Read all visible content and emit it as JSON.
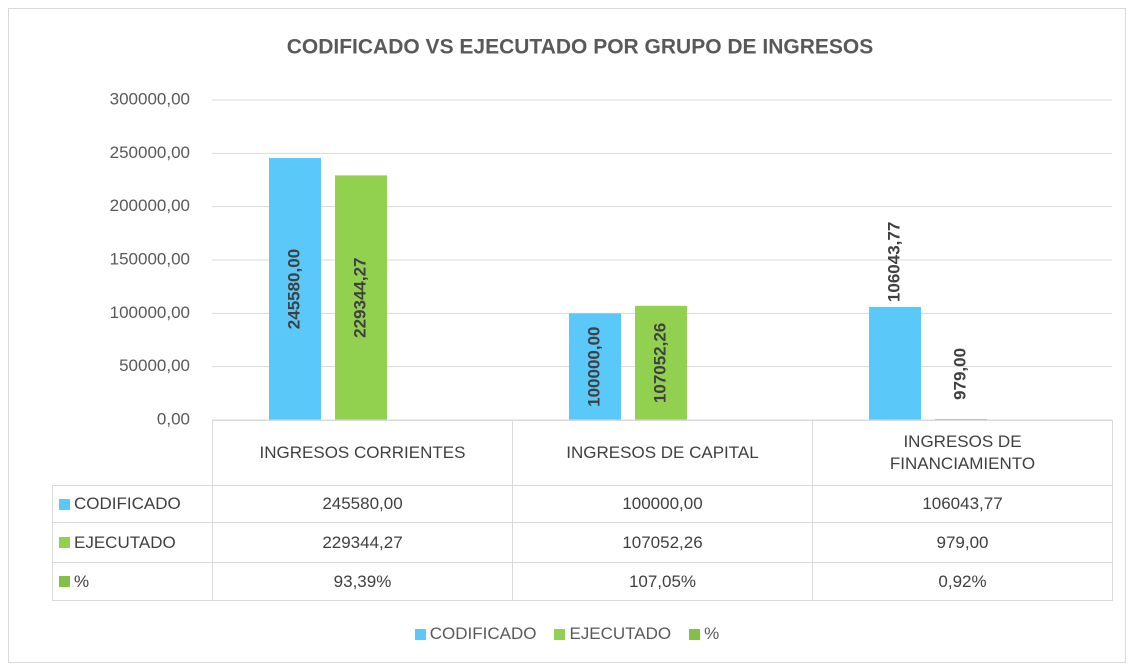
{
  "chart_data": {
    "type": "bar",
    "title": "CODIFICADO VS EJECUTADO POR GRUPO DE INGRESOS",
    "categories": [
      "INGRESOS CORRIENTES",
      "INGRESOS DE CAPITAL",
      "INGRESOS DE FINANCIAMIENTO"
    ],
    "series": [
      {
        "name": "CODIFICADO",
        "color": "#5ac8f8",
        "values": [
          245580.0,
          100000.0,
          106043.77
        ],
        "value_labels": [
          "245580,00",
          "100000,00",
          "106043,77"
        ]
      },
      {
        "name": "EJECUTADO",
        "color": "#92d050",
        "values": [
          229344.27,
          107052.26,
          979.0
        ],
        "value_labels": [
          "229344,27",
          "107052,26",
          "979,00"
        ]
      },
      {
        "name": "%",
        "color": "#84bf4a",
        "values": [
          93.39,
          107.05,
          0.92
        ],
        "value_labels": [
          "93,39%",
          "107,05%",
          "0,92%"
        ]
      }
    ],
    "ylim": [
      0,
      300000
    ],
    "yticks": [
      {
        "value": 0,
        "label": "0,00"
      },
      {
        "value": 50000,
        "label": "50000,00"
      },
      {
        "value": 100000,
        "label": "100000,00"
      },
      {
        "value": 150000,
        "label": "150000,00"
      },
      {
        "value": 200000,
        "label": "200000,00"
      },
      {
        "value": 250000,
        "label": "250000,00"
      },
      {
        "value": 300000,
        "label": "300000,00"
      }
    ],
    "grid": true,
    "data_labels_series": [
      0,
      1
    ],
    "legend": "bottom",
    "data_table": true
  }
}
